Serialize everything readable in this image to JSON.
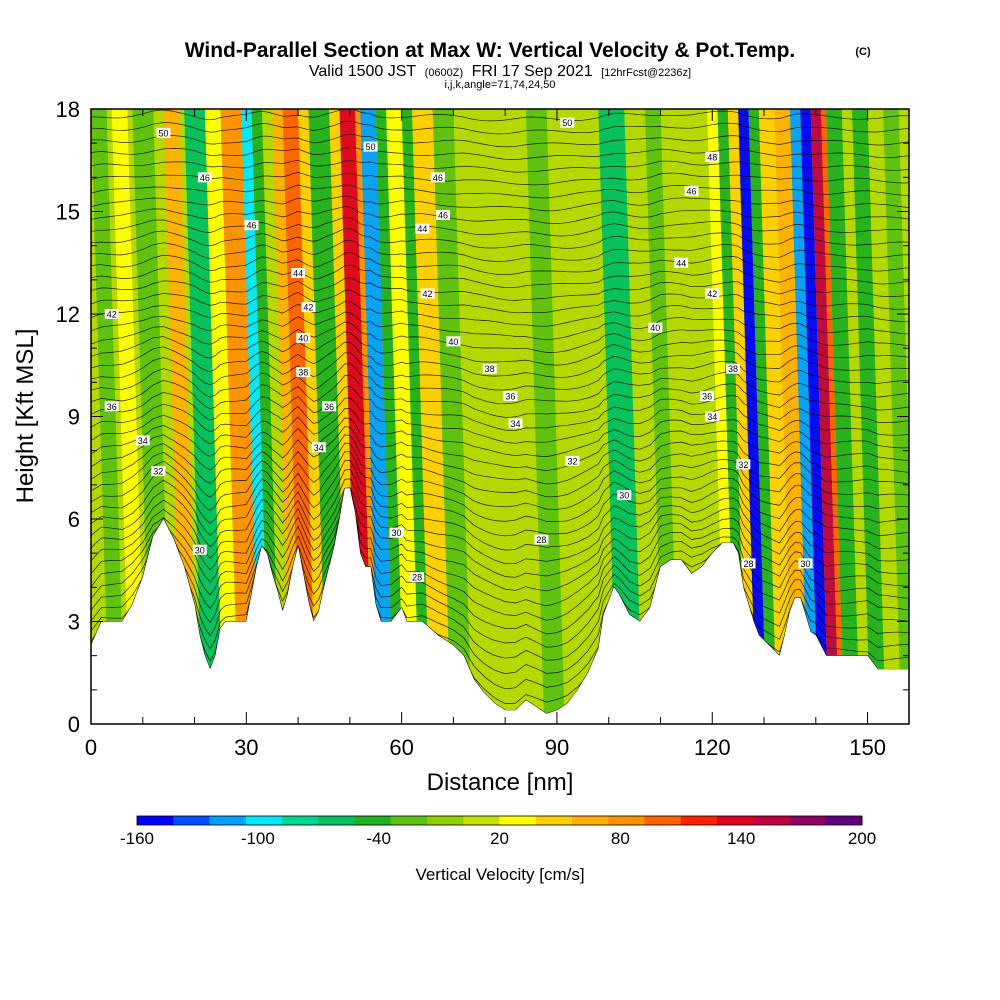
{
  "chart_data": {
    "type": "heatmap",
    "title": "Wind-Parallel Section at Max W: Vertical Velocity & Pot.Temp.",
    "title_mark": "(C)",
    "subtitle": {
      "valid": "Valid 1500 JST",
      "utc": "(0600Z)",
      "date": "FRI 17 Sep 2021",
      "forecast": "[12hrFcst@2236z]"
    },
    "params": "i,j,k,angle=71,74,24,50",
    "xlabel": "Distance [nm]",
    "ylabel": "Height [Kft MSL]",
    "xlim": [
      0,
      158
    ],
    "ylim": [
      0,
      18
    ],
    "x_ticks": [
      "0",
      "30",
      "60",
      "90",
      "120",
      "150"
    ],
    "y_ticks": [
      "0",
      "3",
      "6",
      "9",
      "12",
      "15",
      "18"
    ],
    "colorbar": {
      "label": "Vertical Velocity [cm/s]",
      "tick_labels": [
        "-160",
        "-100",
        "-40",
        "20",
        "80",
        "140",
        "200"
      ],
      "colors": [
        "#0000ff",
        "#0050ff",
        "#00a0ff",
        "#00e8ff",
        "#00d890",
        "#00c060",
        "#20b020",
        "#5cc010",
        "#90d000",
        "#c8e000",
        "#ffff00",
        "#ffd000",
        "#ffb000",
        "#ff9000",
        "#ff6000",
        "#ff2000",
        "#e00020",
        "#c00040",
        "#900060",
        "#600080"
      ]
    },
    "background_color": "#b4d800",
    "terrain_color": "#ffffff",
    "terrain_profile": [
      [
        0,
        2.3
      ],
      [
        2,
        3.0
      ],
      [
        6,
        3.0
      ],
      [
        8,
        3.5
      ],
      [
        10,
        4.3
      ],
      [
        12,
        5.5
      ],
      [
        14,
        6.0
      ],
      [
        16,
        5.4
      ],
      [
        18,
        4.6
      ],
      [
        20,
        3.5
      ],
      [
        21,
        2.6
      ],
      [
        22,
        2.0
      ],
      [
        23,
        1.6
      ],
      [
        24,
        2.0
      ],
      [
        25,
        2.8
      ],
      [
        26,
        3.0
      ],
      [
        28,
        3.0
      ],
      [
        30,
        3.0
      ],
      [
        31,
        3.8
      ],
      [
        32,
        4.6
      ],
      [
        33,
        5.2
      ],
      [
        34,
        5.0
      ],
      [
        35,
        4.4
      ],
      [
        36,
        3.9
      ],
      [
        37,
        3.3
      ],
      [
        38,
        3.8
      ],
      [
        39,
        4.6
      ],
      [
        40,
        5.2
      ],
      [
        41,
        4.4
      ],
      [
        42,
        3.6
      ],
      [
        43,
        3.0
      ],
      [
        44,
        3.3
      ],
      [
        45,
        4.0
      ],
      [
        46,
        4.6
      ],
      [
        47,
        5.2
      ],
      [
        48,
        6.0
      ],
      [
        49,
        6.9
      ],
      [
        50,
        6.9
      ],
      [
        51,
        6.2
      ],
      [
        52,
        5.0
      ],
      [
        53,
        4.6
      ],
      [
        54,
        4.6
      ],
      [
        55,
        3.5
      ],
      [
        56,
        3.0
      ],
      [
        58,
        3.0
      ],
      [
        60,
        3.4
      ],
      [
        61,
        3.0
      ],
      [
        64,
        3.0
      ],
      [
        67,
        2.6
      ],
      [
        70,
        2.3
      ],
      [
        72,
        2.0
      ],
      [
        74,
        1.3
      ],
      [
        76,
        0.9
      ],
      [
        78,
        0.6
      ],
      [
        80,
        0.4
      ],
      [
        82,
        0.4
      ],
      [
        84,
        0.7
      ],
      [
        86,
        0.5
      ],
      [
        88,
        0.3
      ],
      [
        90,
        0.4
      ],
      [
        92,
        0.6
      ],
      [
        94,
        1.0
      ],
      [
        96,
        1.5
      ],
      [
        98,
        2.2
      ],
      [
        99,
        3.2
      ],
      [
        101,
        4.0
      ],
      [
        102,
        3.8
      ],
      [
        104,
        3.2
      ],
      [
        106,
        3.0
      ],
      [
        108,
        3.4
      ],
      [
        110,
        4.6
      ],
      [
        112,
        4.8
      ],
      [
        114,
        4.8
      ],
      [
        116,
        4.4
      ],
      [
        118,
        4.6
      ],
      [
        120,
        5.0
      ],
      [
        122,
        5.3
      ],
      [
        124,
        5.3
      ],
      [
        125,
        5.0
      ],
      [
        126,
        4.0
      ],
      [
        127,
        3.5
      ],
      [
        128,
        3.0
      ],
      [
        129,
        2.6
      ],
      [
        131,
        2.3
      ],
      [
        133,
        2.0
      ],
      [
        134,
        2.6
      ],
      [
        135,
        3.3
      ],
      [
        136,
        3.7
      ],
      [
        137,
        3.7
      ],
      [
        138,
        3.2
      ],
      [
        139,
        2.7
      ],
      [
        140,
        2.6
      ],
      [
        142,
        2.0
      ],
      [
        144,
        2.0
      ],
      [
        148,
        2.0
      ],
      [
        150,
        2.0
      ],
      [
        152,
        1.6
      ],
      [
        156,
        1.6
      ],
      [
        158,
        1.6
      ]
    ],
    "velocity_bands": [
      {
        "x0": 0,
        "x1": 3,
        "w": -20
      },
      {
        "x0": 4,
        "x1": 7,
        "w": 30
      },
      {
        "x0": 8,
        "x1": 12,
        "w": -30
      },
      {
        "x0": 14,
        "x1": 17,
        "w": 60
      },
      {
        "x0": 18,
        "x1": 22,
        "w": -60
      },
      {
        "x0": 22,
        "x1": 25,
        "w": 30
      },
      {
        "x0": 25,
        "x1": 27,
        "w": 90
      },
      {
        "x0": 27,
        "x1": 29,
        "w": 80
      },
      {
        "x0": 29,
        "x1": 31,
        "w": -100
      },
      {
        "x0": 31,
        "x1": 33,
        "w": -50
      },
      {
        "x0": 35,
        "x1": 37,
        "w": 60
      },
      {
        "x0": 37,
        "x1": 40,
        "w": 100
      },
      {
        "x0": 40,
        "x1": 42,
        "w": 50
      },
      {
        "x0": 42,
        "x1": 46,
        "w": -40
      },
      {
        "x0": 46,
        "x1": 48,
        "w": 40
      },
      {
        "x0": 48,
        "x1": 51,
        "w": 130
      },
      {
        "x0": 51,
        "x1": 52,
        "w": 80
      },
      {
        "x0": 52,
        "x1": 55,
        "w": -110
      },
      {
        "x0": 55,
        "x1": 57,
        "w": -40
      },
      {
        "x0": 57,
        "x1": 60,
        "w": 30
      },
      {
        "x0": 60,
        "x1": 62,
        "w": -40
      },
      {
        "x0": 62,
        "x1": 66,
        "w": 40
      },
      {
        "x0": 66,
        "x1": 70,
        "w": -20
      },
      {
        "x0": 84,
        "x1": 88,
        "w": -30
      },
      {
        "x0": 98,
        "x1": 103,
        "w": -60
      },
      {
        "x0": 107,
        "x1": 110,
        "w": -30
      },
      {
        "x0": 119,
        "x1": 121,
        "w": 30
      },
      {
        "x0": 121,
        "x1": 123,
        "w": -40
      },
      {
        "x0": 123,
        "x1": 125,
        "w": 50
      },
      {
        "x0": 125,
        "x1": 127,
        "w": -150
      },
      {
        "x0": 127,
        "x1": 129,
        "w": -40
      },
      {
        "x0": 129,
        "x1": 132,
        "w": 40
      },
      {
        "x0": 132,
        "x1": 135,
        "w": 60
      },
      {
        "x0": 135,
        "x1": 137,
        "w": -120
      },
      {
        "x0": 137,
        "x1": 139,
        "w": -160
      },
      {
        "x0": 139,
        "x1": 141,
        "w": 160
      },
      {
        "x0": 141,
        "x1": 142,
        "w": 100
      },
      {
        "x0": 142,
        "x1": 145,
        "w": -40
      },
      {
        "x0": 147,
        "x1": 150,
        "w": -50
      },
      {
        "x0": 153,
        "x1": 156,
        "w": -20
      }
    ],
    "theta_contour_labels": [
      {
        "text": "50",
        "x": 14,
        "y": 17.3
      },
      {
        "text": "46",
        "x": 22,
        "y": 16.0
      },
      {
        "text": "46",
        "x": 31,
        "y": 14.6
      },
      {
        "text": "44",
        "x": 40,
        "y": 13.2
      },
      {
        "text": "42",
        "x": 42,
        "y": 12.2
      },
      {
        "text": "40",
        "x": 41,
        "y": 11.3
      },
      {
        "text": "38",
        "x": 41,
        "y": 10.3
      },
      {
        "text": "36",
        "x": 46,
        "y": 9.3
      },
      {
        "text": "34",
        "x": 44,
        "y": 8.1
      },
      {
        "text": "42",
        "x": 4,
        "y": 12.0
      },
      {
        "text": "36",
        "x": 4,
        "y": 9.3
      },
      {
        "text": "34",
        "x": 10,
        "y": 8.3
      },
      {
        "text": "32",
        "x": 13,
        "y": 7.4
      },
      {
        "text": "30",
        "x": 21,
        "y": 5.1
      },
      {
        "text": "50",
        "x": 54,
        "y": 16.9
      },
      {
        "text": "46",
        "x": 67,
        "y": 16.0
      },
      {
        "text": "46",
        "x": 68,
        "y": 14.9
      },
      {
        "text": "44",
        "x": 64,
        "y": 14.5
      },
      {
        "text": "42",
        "x": 65,
        "y": 12.6
      },
      {
        "text": "40",
        "x": 70,
        "y": 11.2
      },
      {
        "text": "38",
        "x": 77,
        "y": 10.4
      },
      {
        "text": "36",
        "x": 81,
        "y": 9.6
      },
      {
        "text": "34",
        "x": 82,
        "y": 8.8
      },
      {
        "text": "32",
        "x": 93,
        "y": 7.7
      },
      {
        "text": "30",
        "x": 103,
        "y": 6.7
      },
      {
        "text": "28",
        "x": 87,
        "y": 5.4
      },
      {
        "text": "30",
        "x": 59,
        "y": 5.6
      },
      {
        "text": "28",
        "x": 63,
        "y": 4.3
      },
      {
        "text": "50",
        "x": 92,
        "y": 17.6
      },
      {
        "text": "48",
        "x": 120,
        "y": 16.6
      },
      {
        "text": "46",
        "x": 116,
        "y": 15.6
      },
      {
        "text": "44",
        "x": 114,
        "y": 13.5
      },
      {
        "text": "42",
        "x": 120,
        "y": 12.6
      },
      {
        "text": "40",
        "x": 109,
        "y": 11.6
      },
      {
        "text": "38",
        "x": 124,
        "y": 10.4
      },
      {
        "text": "36",
        "x": 119,
        "y": 9.6
      },
      {
        "text": "34",
        "x": 120,
        "y": 9.0
      },
      {
        "text": "32",
        "x": 126,
        "y": 7.6
      },
      {
        "text": "28",
        "x": 127,
        "y": 4.7
      },
      {
        "text": "30",
        "x": 138,
        "y": 4.7
      }
    ],
    "grid": false,
    "legend": "colorbar-bottom"
  }
}
